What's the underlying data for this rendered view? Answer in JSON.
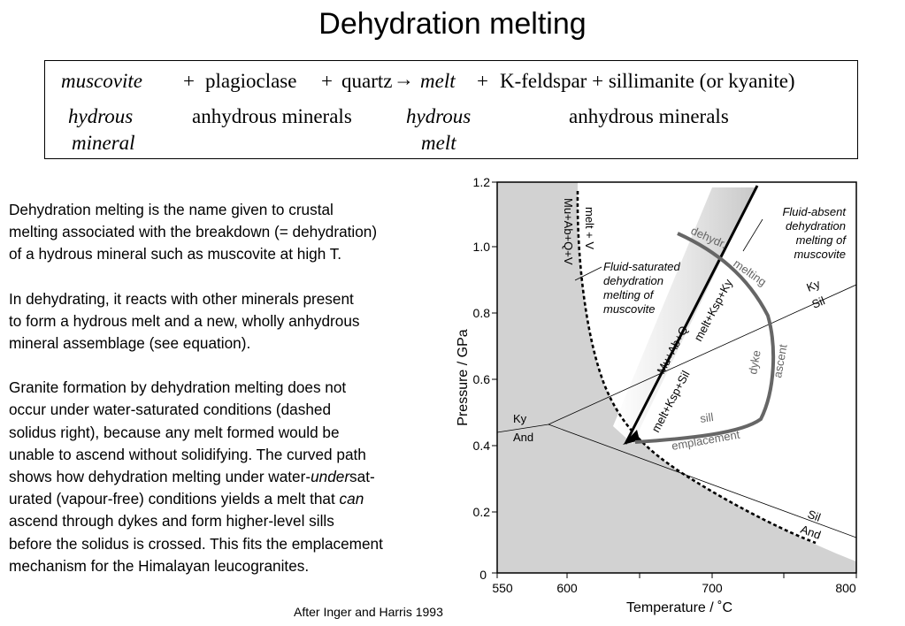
{
  "title": "Dehydration melting",
  "equation": {
    "muscovite": "muscovite",
    "plus1": "+",
    "plagioclase": "plagioclase",
    "plus2": "+",
    "quartz": "quartz",
    "arrow": "→",
    "melt": "melt",
    "plus3": "+",
    "products": "K-feldspar + sillimanite (or kyanite)",
    "hydrous1": "hydrous",
    "mineral": "mineral",
    "anhydrous1": "anhydrous minerals",
    "hydrous2": "hydrous",
    "melt2": "melt",
    "anhydrous2": "anhydrous minerals"
  },
  "text": {
    "p1": [
      "Dehydration melting is the name given to crustal",
      "melting associated with the breakdown (= dehydration)",
      "of a hydrous mineral such as muscovite at high T."
    ],
    "p2": [
      "In dehydrating, it reacts with other minerals present",
      "to form a hydrous melt and a new, wholly anhydrous",
      "mineral assemblage (see equation)."
    ],
    "p3": {
      "l1": "Granite formation by dehydration melting does not",
      "l2": "occur under water-saturated conditions (dashed",
      "l3": "solidus right), because any melt formed would be",
      "l4": "unable to ascend without solidifying. The curved path",
      "l5a": "shows how dehydration melting under water-",
      "l5b": "under",
      "l5c": "sat-",
      "l6a": "urated (vapour-free) conditions yields a melt  that ",
      "l6b": "can",
      "l7": "ascend through dykes and form higher-level sills",
      "l8": "before the solidus is crossed. This fits the emplacement",
      "l9": "mechanism for the Himalayan leucogranites."
    }
  },
  "credit": "After Inger and Harris 1993",
  "diagram": {
    "x_axis_label": "Temperature / ˚C",
    "y_axis_label": "Pressure / GPa",
    "x_ticks": [
      "550",
      "600",
      "700",
      "800"
    ],
    "y_ticks": [
      "0",
      "0.2",
      "0.4",
      "0.6",
      "0.8",
      "1.0",
      "1.2"
    ],
    "labels": {
      "melt_v": "melt + V",
      "mu_ab_q_v": "Mu+Ab+Q+V",
      "fluid_sat_1": "Fluid-saturated",
      "fluid_sat_2": "dehydration",
      "fluid_sat_3": "melting of",
      "fluid_sat_4": "muscovite",
      "fluid_abs_1": "Fluid-absent",
      "fluid_abs_2": "dehydration",
      "fluid_abs_3": "melting of",
      "fluid_abs_4": "muscovite",
      "dehydr": "dehydr.",
      "melting": "melting",
      "melt_ksp_ky": "melt+Ksp+Ky",
      "mu_ab_q": "Mu+Ab+Q",
      "melt_ksp_sil": "melt+Ksp+Sil",
      "dyke": "dyke",
      "ascent": "ascent",
      "sill": "sill",
      "emplacement": "emplacement",
      "ky_right": "Ky",
      "sil_right": "Sil",
      "ky_left": "Ky",
      "and_left": "And",
      "sil_bottom": "Sil",
      "and_bottom": "And"
    },
    "colors": {
      "shading": "#d2d2d2",
      "path": "#666666",
      "frame": "#000000"
    }
  }
}
